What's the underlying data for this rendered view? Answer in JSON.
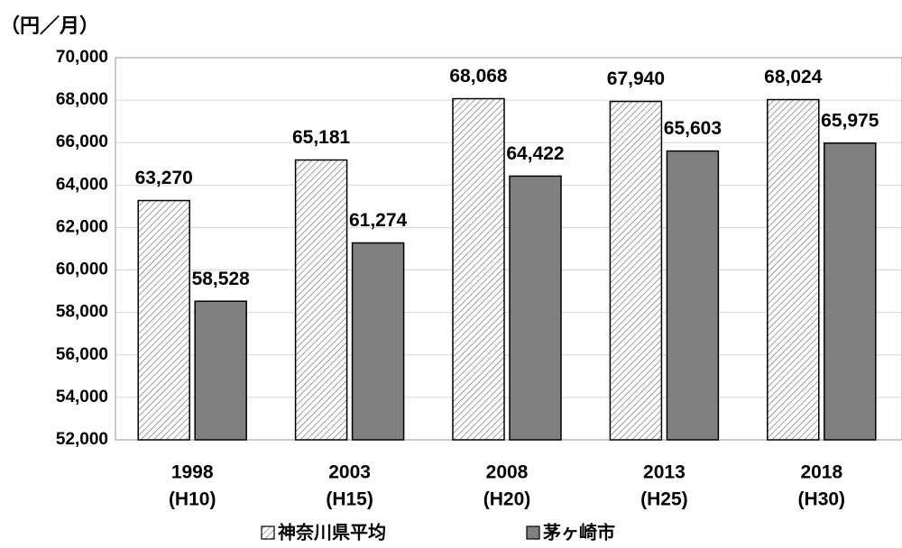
{
  "chart_data": {
    "type": "bar",
    "y_axis_label": "（円／月）",
    "categories": [
      [
        "1998",
        "(H10)"
      ],
      [
        "2003",
        "(H15)"
      ],
      [
        "2008",
        "(H20)"
      ],
      [
        "2013",
        "(H25)"
      ],
      [
        "2018",
        "(H30)"
      ]
    ],
    "series": [
      {
        "name": "神奈川県平均",
        "color": "#ffffff",
        "pattern": "hatch",
        "values": [
          63270,
          65181,
          68068,
          67940,
          68024
        ],
        "value_labels": [
          "63,270",
          "65,181",
          "68,068",
          "67,940",
          "68,024"
        ]
      },
      {
        "name": "茅ヶ崎市",
        "color": "#808080",
        "values": [
          58528,
          61274,
          64422,
          65603,
          65975
        ],
        "value_labels": [
          "58,528",
          "61,274",
          "64,422",
          "65,603",
          "65,975"
        ]
      }
    ],
    "ylim": [
      52000,
      70000
    ],
    "yticks": [
      {
        "value": 52000,
        "label": "52,000"
      },
      {
        "value": 54000,
        "label": "54,000"
      },
      {
        "value": 56000,
        "label": "56,000"
      },
      {
        "value": 58000,
        "label": "58,000"
      },
      {
        "value": 60000,
        "label": "60,000"
      },
      {
        "value": 62000,
        "label": "62,000"
      },
      {
        "value": 64000,
        "label": "64,000"
      },
      {
        "value": 66000,
        "label": "66,000"
      },
      {
        "value": 68000,
        "label": "68,000"
      },
      {
        "value": 70000,
        "label": "70,000"
      }
    ],
    "grid": true,
    "legend": "bottom"
  }
}
